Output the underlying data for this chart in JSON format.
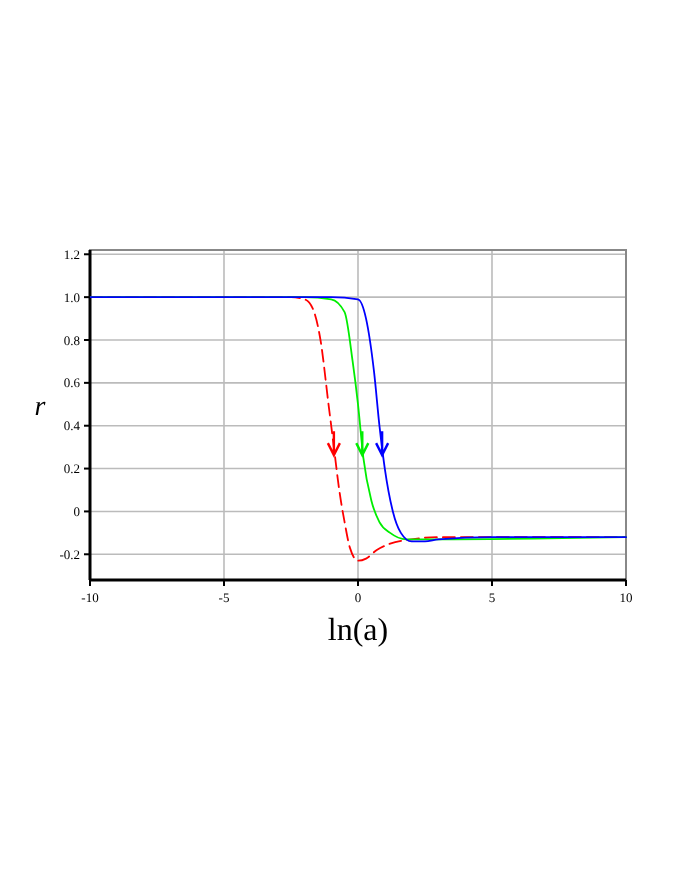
{
  "chart_data": {
    "type": "line",
    "xlabel": "ln(a)",
    "ylabel": "r",
    "xlim": [
      -10,
      10
    ],
    "ylim": [
      -0.32,
      1.22
    ],
    "xticks": [
      -10,
      -5,
      0,
      5,
      10
    ],
    "yticks": [
      {
        "value": -0.2,
        "label": "-0.2"
      },
      0,
      {
        "value": 0.2,
        "label": "0.2"
      },
      {
        "value": 0.4,
        "label": "0.4"
      },
      {
        "value": 0.6,
        "label": "0.6"
      },
      {
        "value": 0.8,
        "label": "0.8"
      },
      {
        "value": 1.0,
        "label": "1.0"
      },
      {
        "value": 1.2,
        "label": "1.2"
      }
    ],
    "grid": true,
    "series": [
      {
        "color": "#ff0000",
        "line_style": "dashed",
        "x": [
          -10,
          -2.5,
          -2,
          -1.7,
          -1.4,
          -1.1,
          -0.9,
          -0.7,
          -0.5,
          -0.3,
          0,
          0.3,
          0.7,
          1.2,
          2,
          3,
          10
        ],
        "values": [
          1,
          1,
          0.99,
          0.95,
          0.8,
          0.5,
          0.3,
          0.1,
          -0.05,
          -0.17,
          -0.23,
          -0.22,
          -0.18,
          -0.15,
          -0.13,
          -0.12,
          -0.12
        ]
      },
      {
        "color": "#00ee00",
        "line_style": "solid",
        "x": [
          -10,
          -2,
          -1,
          -0.5,
          -0.2,
          0,
          0.2,
          0.5,
          0.8,
          1.2,
          1.8,
          3,
          10
        ],
        "values": [
          1,
          1,
          0.99,
          0.93,
          0.7,
          0.5,
          0.25,
          0.05,
          -0.05,
          -0.1,
          -0.13,
          -0.13,
          -0.12
        ]
      },
      {
        "color": "#0000ff",
        "line_style": "solid",
        "x": [
          -10,
          -1,
          0,
          0.3,
          0.6,
          0.8,
          1.0,
          1.3,
          1.6,
          2,
          2.5,
          3,
          5,
          10
        ],
        "values": [
          1,
          1,
          0.99,
          0.9,
          0.65,
          0.4,
          0.2,
          0,
          -0.1,
          -0.14,
          -0.14,
          -0.13,
          -0.12,
          -0.12
        ]
      }
    ]
  }
}
